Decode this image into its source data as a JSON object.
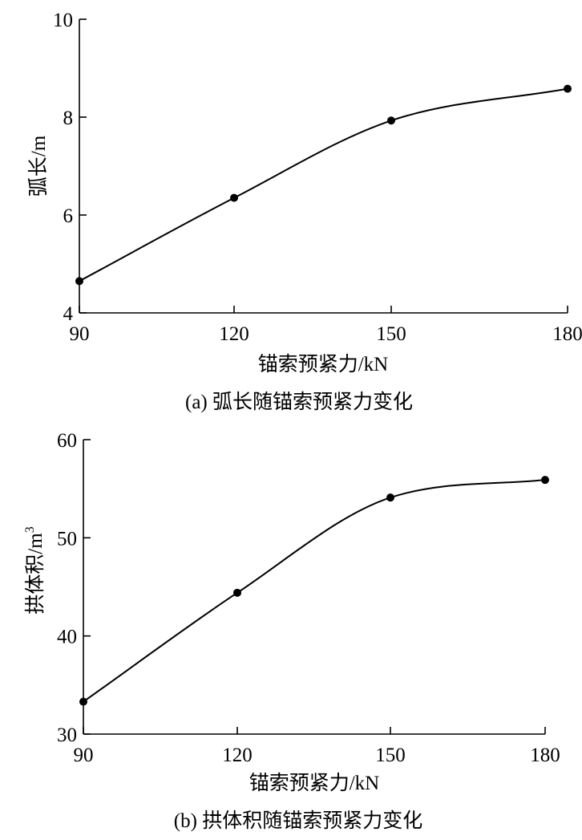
{
  "chart_data": [
    {
      "type": "line",
      "caption": "(a) 弧长随锚索预紧力变化",
      "xlabel": "锚索预紧力/kN",
      "ylabel": "弧长/m",
      "x": [
        90,
        120,
        150,
        180
      ],
      "values": [
        4.65,
        6.35,
        7.93,
        8.58
      ],
      "xlim": [
        90,
        180
      ],
      "ylim": [
        4,
        10
      ],
      "xticks": [
        "90",
        "120",
        "150",
        "180"
      ],
      "yticks": [
        "4",
        "6",
        "8",
        "10"
      ],
      "grid": false,
      "markers": true,
      "smooth": true,
      "color": "#000000"
    },
    {
      "type": "line",
      "caption": "(b) 拱体积随锚索预紧力变化",
      "xlabel": "锚索预紧力/kN",
      "ylabel": "拱体积/m",
      "ylabel_sup": "3",
      "x": [
        90,
        120,
        150,
        180
      ],
      "values": [
        33.3,
        44.4,
        54.1,
        55.9
      ],
      "xlim": [
        90,
        180
      ],
      "ylim": [
        30,
        60
      ],
      "xticks": [
        "90",
        "120",
        "150",
        "180"
      ],
      "yticks": [
        "30",
        "40",
        "50",
        "60"
      ],
      "grid": false,
      "markers": true,
      "smooth": true,
      "color": "#000000"
    }
  ]
}
